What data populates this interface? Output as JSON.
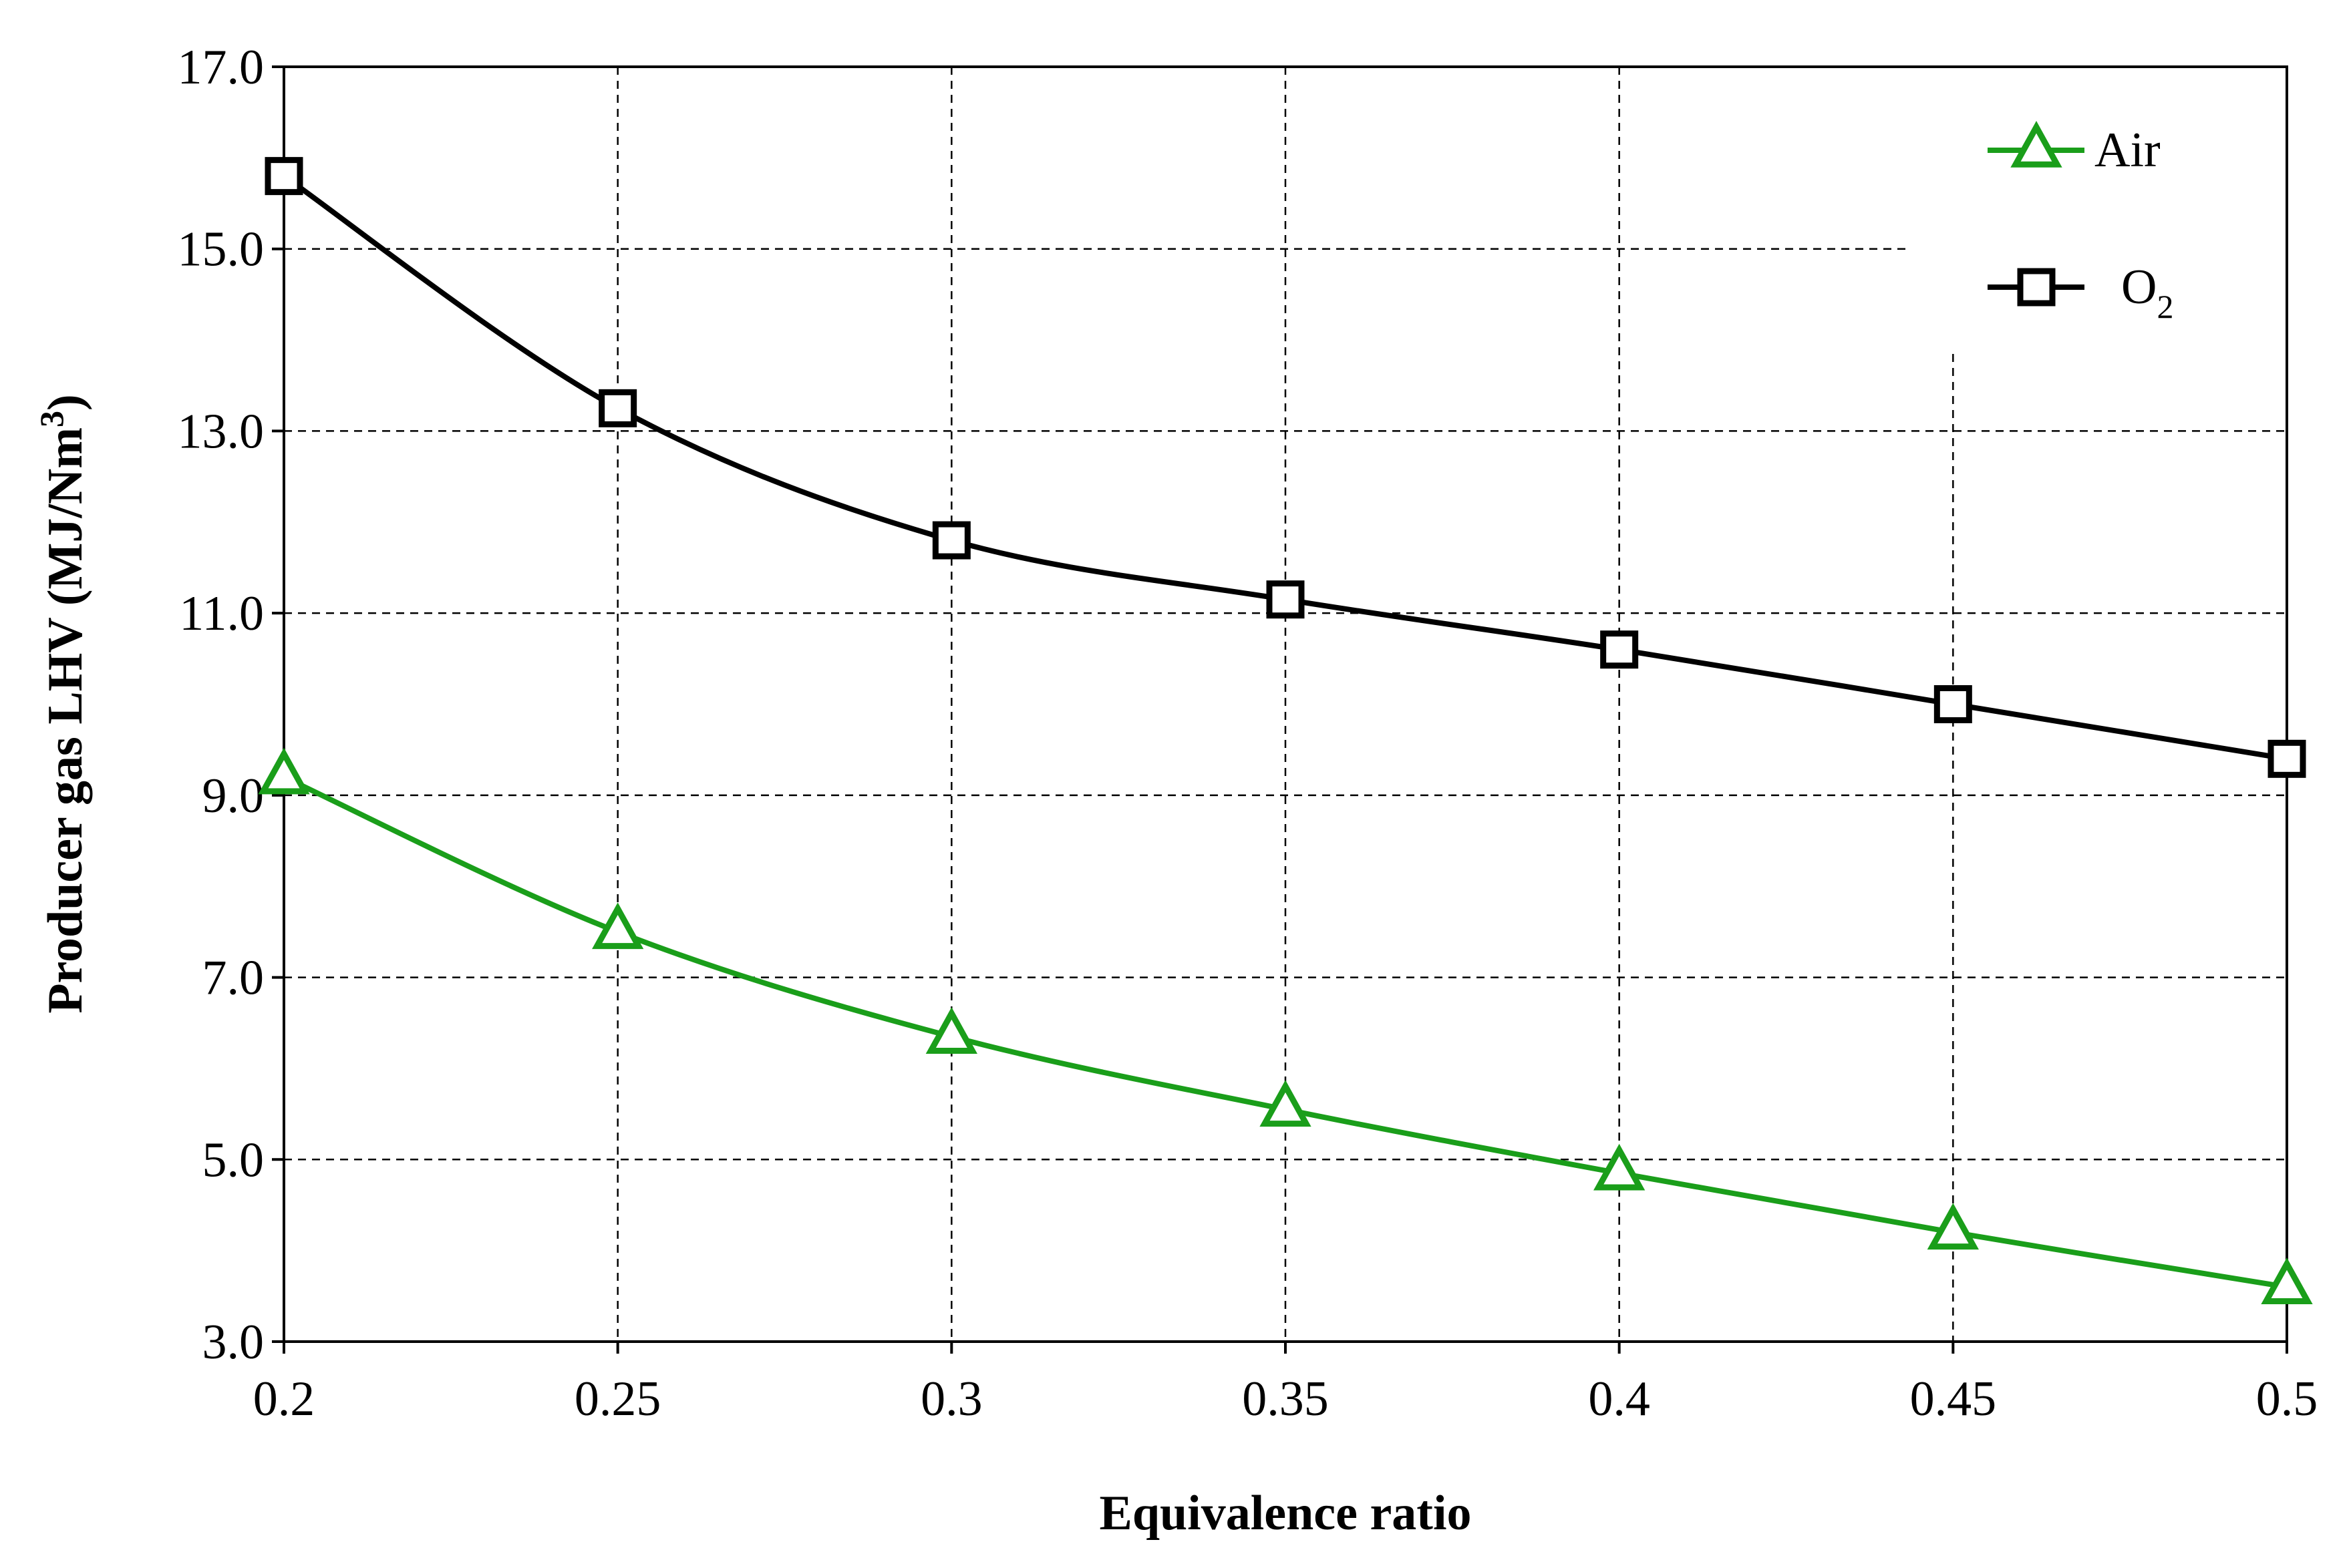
{
  "chart_data": {
    "type": "line",
    "x": [
      0.2,
      0.25,
      0.3,
      0.35,
      0.4,
      0.45,
      0.5
    ],
    "x_tick_labels": [
      "0.2",
      "0.25",
      "0.3",
      "0.35",
      "0.4",
      "0.45",
      "0.5"
    ],
    "y_ticks": [
      3,
      5,
      7,
      9,
      11,
      13,
      15,
      17
    ],
    "y_tick_labels": [
      "3.0",
      "5.0",
      "7.0",
      "9.0",
      "11.0",
      "13.0",
      "15.0",
      "17.0"
    ],
    "xlim": [
      0.2,
      0.5
    ],
    "ylim": [
      3,
      17
    ],
    "xlabel": "Equivalence ratio",
    "ylabel_main": "Producer gas LHV (MJ/Nm",
    "ylabel_sup": "3",
    "ylabel_close": ")",
    "grid": true,
    "legend_position": "top-right",
    "series": [
      {
        "name": "Air",
        "label_main": "Air",
        "label_sub": "",
        "marker": "triangle",
        "color": "#1a9e1a",
        "values": [
          9.2,
          7.5,
          6.35,
          5.55,
          4.85,
          4.2,
          3.6
        ]
      },
      {
        "name": "O2",
        "label_main": "O",
        "label_sub": "2",
        "marker": "square",
        "color": "#000000",
        "values": [
          15.8,
          13.25,
          11.8,
          11.15,
          10.6,
          10.0,
          9.4
        ]
      }
    ]
  }
}
